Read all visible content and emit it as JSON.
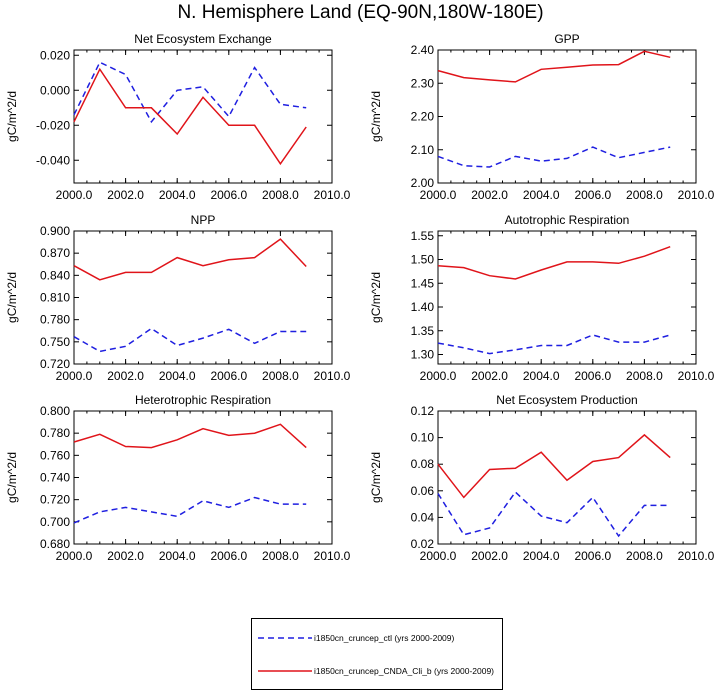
{
  "title": "N. Hemisphere Land (EQ-90N,180W-180E)",
  "colors": {
    "ctl": "#1f1fe0",
    "cnda": "#e0141a"
  },
  "legend": {
    "entries": [
      {
        "label": "i1850cn_cruncep_ctl (yrs 2000-2009)",
        "style": "dashed",
        "color": "#1f1fe0"
      },
      {
        "label": "i1850cn_cruncep_CNDA_Cli_b (yrs 2000-2009)",
        "style": "solid",
        "color": "#e0141a"
      }
    ]
  },
  "chart_data": [
    {
      "type": "line",
      "title": "Net Ecosystem Exchange",
      "ylabel": "gC/m^2/d",
      "xlim": [
        2000,
        2010
      ],
      "ylim": [
        -0.053,
        0.023
      ],
      "xticks": [
        "2000.0",
        "2002.0",
        "2004.0",
        "2006.0",
        "2008.0",
        "2010.0"
      ],
      "yticks": [
        "0.020",
        "0.000",
        "-0.020",
        "-0.040"
      ],
      "x": [
        2000,
        2001,
        2002,
        2003,
        2004,
        2005,
        2006,
        2007,
        2008,
        2009
      ],
      "series": [
        {
          "values": [
            -0.014,
            0.016,
            0.009,
            -0.018,
            -0.0,
            0.002,
            -0.015,
            0.013,
            -0.008,
            -0.01
          ],
          "style": "dashed",
          "color": "#1f1fe0"
        },
        {
          "values": [
            -0.018,
            0.012,
            -0.01,
            -0.01,
            -0.025,
            -0.004,
            -0.02,
            -0.02,
            -0.042,
            -0.021
          ],
          "style": "solid",
          "color": "#e0141a"
        }
      ]
    },
    {
      "type": "line",
      "title": "GPP",
      "ylabel": "gC/m^2/d",
      "xlim": [
        2000,
        2010
      ],
      "ylim": [
        2.0,
        2.4
      ],
      "xticks": [
        "2000.0",
        "2002.0",
        "2004.0",
        "2006.0",
        "2008.0",
        "2010.0"
      ],
      "yticks": [
        "2.40",
        "2.30",
        "2.20",
        "2.10",
        "2.00"
      ],
      "x": [
        2000,
        2001,
        2002,
        2003,
        2004,
        2005,
        2006,
        2007,
        2008,
        2009
      ],
      "series": [
        {
          "values": [
            2.08,
            2.052,
            2.048,
            2.08,
            2.066,
            2.074,
            2.108,
            2.076,
            2.092,
            2.108
          ],
          "style": "dashed",
          "color": "#1f1fe0"
        },
        {
          "values": [
            2.338,
            2.317,
            2.31,
            2.304,
            2.342,
            2.348,
            2.355,
            2.356,
            2.396,
            2.378
          ],
          "style": "solid",
          "color": "#e0141a"
        }
      ]
    },
    {
      "type": "line",
      "title": "NPP",
      "ylabel": "gC/m^2/d",
      "xlim": [
        2000,
        2010
      ],
      "ylim": [
        0.72,
        0.9
      ],
      "xticks": [
        "2000.0",
        "2002.0",
        "2004.0",
        "2006.0",
        "2008.0",
        "2010.0"
      ],
      "yticks": [
        "0.900",
        "0.870",
        "0.840",
        "0.810",
        "0.780",
        "0.750",
        "0.720"
      ],
      "x": [
        2000,
        2001,
        2002,
        2003,
        2004,
        2005,
        2006,
        2007,
        2008,
        2009
      ],
      "series": [
        {
          "values": [
            0.757,
            0.737,
            0.744,
            0.768,
            0.745,
            0.755,
            0.767,
            0.748,
            0.764,
            0.764
          ],
          "style": "dashed",
          "color": "#1f1fe0"
        },
        {
          "values": [
            0.853,
            0.834,
            0.844,
            0.844,
            0.864,
            0.853,
            0.861,
            0.864,
            0.889,
            0.852
          ],
          "style": "solid",
          "color": "#e0141a"
        }
      ]
    },
    {
      "type": "line",
      "title": "Autotrophic Respiration",
      "ylabel": "gC/m^2/d",
      "xlim": [
        2000,
        2010
      ],
      "ylim": [
        1.28,
        1.56
      ],
      "xticks": [
        "2000.0",
        "2002.0",
        "2004.0",
        "2006.0",
        "2008.0",
        "2010.0"
      ],
      "yticks": [
        "1.55",
        "1.50",
        "1.45",
        "1.40",
        "1.35",
        "1.30"
      ],
      "x": [
        2000,
        2001,
        2002,
        2003,
        2004,
        2005,
        2006,
        2007,
        2008,
        2009
      ],
      "series": [
        {
          "values": [
            1.324,
            1.314,
            1.302,
            1.31,
            1.319,
            1.319,
            1.341,
            1.326,
            1.326,
            1.341
          ],
          "style": "dashed",
          "color": "#1f1fe0"
        },
        {
          "values": [
            1.487,
            1.483,
            1.466,
            1.459,
            1.478,
            1.495,
            1.495,
            1.492,
            1.507,
            1.527
          ],
          "style": "solid",
          "color": "#e0141a"
        }
      ]
    },
    {
      "type": "line",
      "title": "Heterotrophic Respiration",
      "ylabel": "gC/m^2/d",
      "xlim": [
        2000,
        2010
      ],
      "ylim": [
        0.68,
        0.8
      ],
      "xticks": [
        "2000.0",
        "2002.0",
        "2004.0",
        "2006.0",
        "2008.0",
        "2010.0"
      ],
      "yticks": [
        "0.800",
        "0.780",
        "0.760",
        "0.740",
        "0.720",
        "0.700",
        "0.680"
      ],
      "x": [
        2000,
        2001,
        2002,
        2003,
        2004,
        2005,
        2006,
        2007,
        2008,
        2009
      ],
      "series": [
        {
          "values": [
            0.699,
            0.709,
            0.713,
            0.709,
            0.705,
            0.719,
            0.713,
            0.722,
            0.716,
            0.716
          ],
          "style": "dashed",
          "color": "#1f1fe0"
        },
        {
          "values": [
            0.772,
            0.779,
            0.768,
            0.767,
            0.774,
            0.784,
            0.778,
            0.78,
            0.788,
            0.767
          ],
          "style": "solid",
          "color": "#e0141a"
        }
      ]
    },
    {
      "type": "line",
      "title": "Net Ecosystem Production",
      "ylabel": "gC/m^2/d",
      "xlim": [
        2000,
        2010
      ],
      "ylim": [
        0.02,
        0.12
      ],
      "xticks": [
        "2000.0",
        "2002.0",
        "2004.0",
        "2006.0",
        "2008.0",
        "2010.0"
      ],
      "yticks": [
        "0.12",
        "0.10",
        "0.08",
        "0.06",
        "0.04",
        "0.02"
      ],
      "x": [
        2000,
        2001,
        2002,
        2003,
        2004,
        2005,
        2006,
        2007,
        2008,
        2009
      ],
      "series": [
        {
          "values": [
            0.058,
            0.027,
            0.032,
            0.059,
            0.041,
            0.036,
            0.055,
            0.026,
            0.049,
            0.049
          ],
          "style": "dashed",
          "color": "#1f1fe0"
        },
        {
          "values": [
            0.08,
            0.055,
            0.076,
            0.077,
            0.089,
            0.068,
            0.082,
            0.085,
            0.102,
            0.085
          ],
          "style": "solid",
          "color": "#e0141a"
        }
      ]
    }
  ]
}
